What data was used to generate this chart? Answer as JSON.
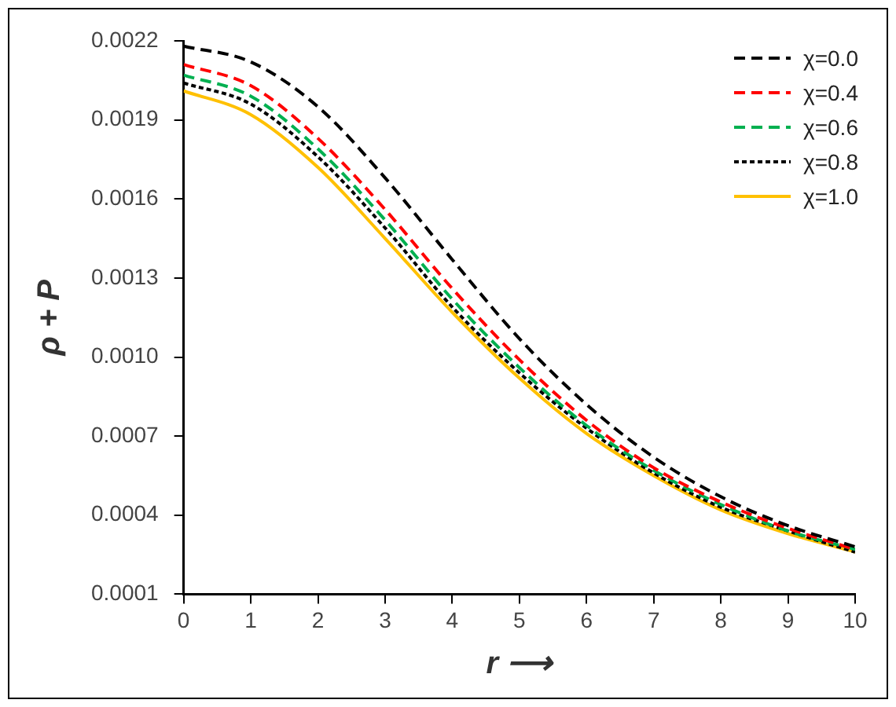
{
  "chart_data": {
    "type": "line",
    "xlabel": "r ⟶",
    "ylabel": "ρ + P",
    "x": [
      0,
      1,
      2,
      3,
      4,
      5,
      6,
      7,
      8,
      9,
      10
    ],
    "xlim": [
      0,
      10
    ],
    "xticks": [
      0,
      1,
      2,
      3,
      4,
      5,
      6,
      7,
      8,
      9,
      10
    ],
    "ylim": [
      0.0001,
      0.0022
    ],
    "yticks": [
      0.0001,
      0.0004,
      0.0007,
      {
        "value": 0.001,
        "label": "0.0010"
      },
      0.0013,
      0.0016,
      0.0019,
      0.0022
    ],
    "grid": false,
    "legend": "top right",
    "marker": "none",
    "series": [
      {
        "name": "χ=0.0",
        "color": "#000000",
        "line_style": "dashed",
        "values": [
          0.00218,
          0.00212,
          0.00195,
          0.00168,
          0.00137,
          0.00107,
          0.00082,
          0.00062,
          0.00047,
          0.00036,
          0.00028
        ]
      },
      {
        "name": "χ=0.4",
        "color": "#ff0000",
        "line_style": "dashed",
        "values": [
          0.00211,
          0.00203,
          0.00183,
          0.00156,
          0.00126,
          0.00099,
          0.00076,
          0.00058,
          0.00045,
          0.00035,
          0.00027
        ]
      },
      {
        "name": "χ=0.6",
        "color": "#00b050",
        "line_style": "dashed",
        "values": [
          0.00207,
          0.00199,
          0.00179,
          0.00152,
          0.00122,
          0.00096,
          0.00074,
          0.00057,
          0.00044,
          0.00034,
          0.00027
        ]
      },
      {
        "name": "χ=0.8",
        "color": "#000000",
        "line_style": "dotted",
        "values": [
          0.00204,
          0.00196,
          0.00176,
          0.00149,
          0.00119,
          0.00094,
          0.00073,
          0.00056,
          0.00043,
          0.00034,
          0.00026
        ]
      },
      {
        "name": "χ=1.0",
        "color": "#ffc000",
        "line_style": "solid",
        "values": [
          0.00201,
          0.00192,
          0.00172,
          0.00145,
          0.00117,
          0.00092,
          0.00071,
          0.00055,
          0.00042,
          0.00033,
          0.00026
        ]
      }
    ]
  }
}
